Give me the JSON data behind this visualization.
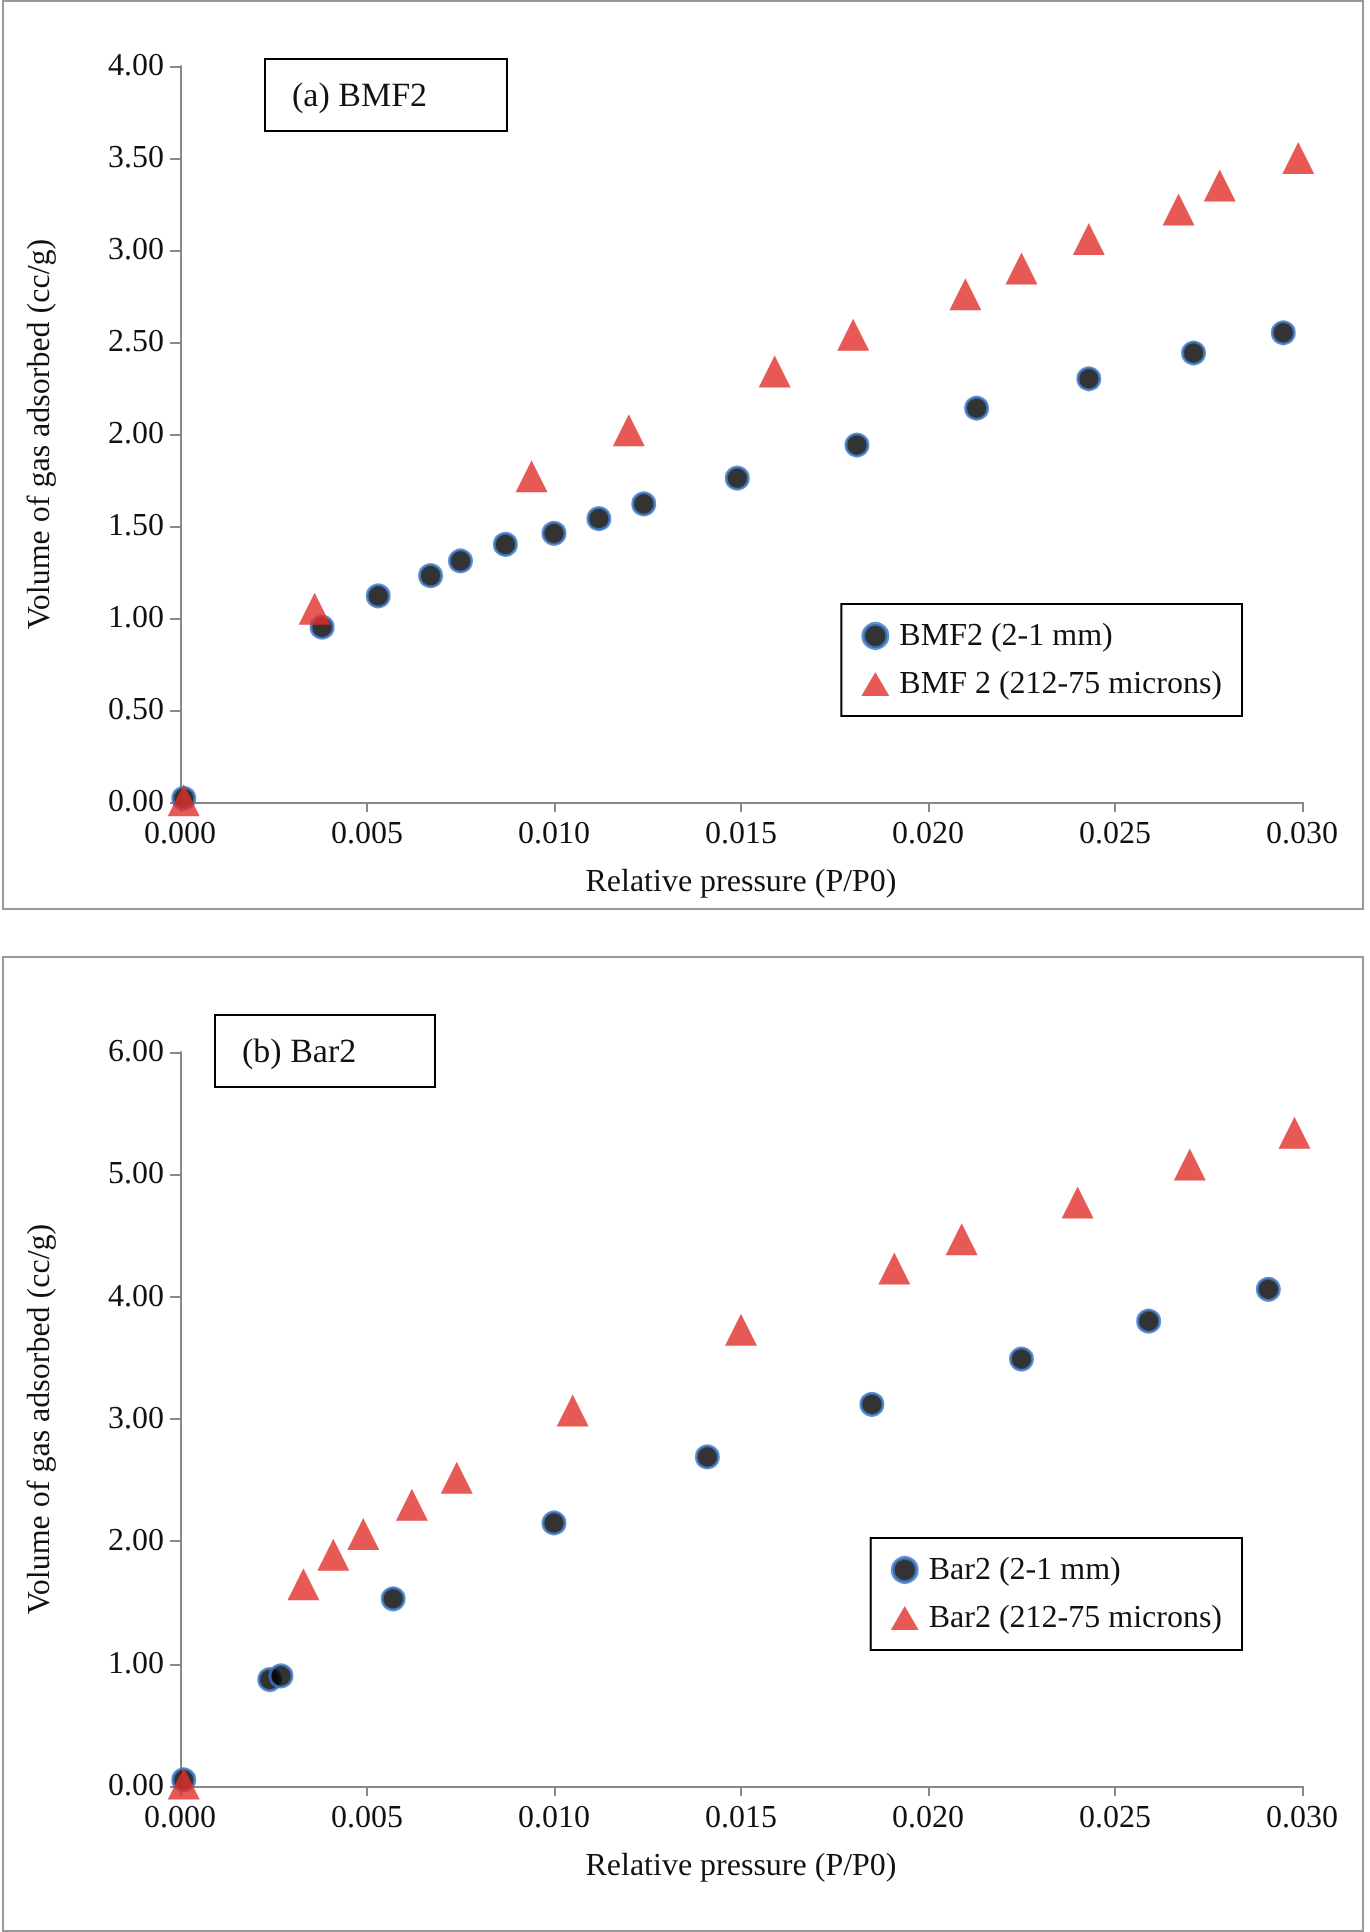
{
  "chart_data": [
    {
      "type": "scatter",
      "title": "(a) BMF2",
      "xlabel": "Relative pressure (P/P0)",
      "ylabel": "Volume of gas adsorbed (cc/g)",
      "xlim": [
        0,
        0.03
      ],
      "xticks": [
        {
          "value": 0,
          "label": "0.000"
        },
        {
          "value": 0.005,
          "label": "0.005"
        },
        {
          "value": 0.01,
          "label": "0.010"
        },
        {
          "value": 0.015,
          "label": "0.015"
        },
        {
          "value": 0.02,
          "label": "0.020"
        },
        {
          "value": 0.025,
          "label": "0.025"
        },
        {
          "value": 0.03,
          "label": "0.030"
        }
      ],
      "ylim": [
        0,
        4
      ],
      "yticks": [
        {
          "value": 0,
          "label": "0.00"
        },
        {
          "value": 0.5,
          "label": "0.50"
        },
        {
          "value": 1,
          "label": "1.00"
        },
        {
          "value": 1.5,
          "label": "1.50"
        },
        {
          "value": 2,
          "label": "2.00"
        },
        {
          "value": 2.5,
          "label": "2.50"
        },
        {
          "value": 3,
          "label": "3.00"
        },
        {
          "value": 3.5,
          "label": "3.50"
        },
        {
          "value": 4,
          "label": "4.00"
        }
      ],
      "grid": false,
      "legend": "bottom right",
      "series": [
        {
          "name": "BMF2 (2-1 mm)",
          "color": "#000000",
          "marker": "circle",
          "x": [
            0.0001,
            0.0038,
            0.0053,
            0.0067,
            0.0075,
            0.0087,
            0.01,
            0.0112,
            0.0124,
            0.0149,
            0.0181,
            0.0213,
            0.0243,
            0.0271,
            0.0295
          ],
          "values": [
            0.02,
            0.95,
            1.12,
            1.23,
            1.31,
            1.4,
            1.46,
            1.54,
            1.62,
            1.76,
            1.94,
            2.14,
            2.3,
            2.44,
            2.55
          ]
        },
        {
          "name": "BMF 2 (212-75 microns)",
          "color": "#e0302a",
          "marker": "triangle",
          "x": [
            0.0001,
            0.0036,
            0.0094,
            0.012,
            0.0159,
            0.018,
            0.021,
            0.0225,
            0.0243,
            0.0267,
            0.0278,
            0.0299
          ],
          "values": [
            0.01,
            1.05,
            1.77,
            2.02,
            2.34,
            2.54,
            2.76,
            2.9,
            3.06,
            3.22,
            3.35,
            3.5
          ]
        }
      ]
    },
    {
      "type": "scatter",
      "title": "(b) Bar2",
      "xlabel": "Relative pressure (P/P0)",
      "ylabel": "Volume of gas adsorbed (cc/g)",
      "xlim": [
        0,
        0.03
      ],
      "xticks": [
        {
          "value": 0,
          "label": "0.000"
        },
        {
          "value": 0.005,
          "label": "0.005"
        },
        {
          "value": 0.01,
          "label": "0.010"
        },
        {
          "value": 0.015,
          "label": "0.015"
        },
        {
          "value": 0.02,
          "label": "0.020"
        },
        {
          "value": 0.025,
          "label": "0.025"
        },
        {
          "value": 0.03,
          "label": "0.030"
        }
      ],
      "ylim": [
        0,
        6
      ],
      "yticks": [
        {
          "value": 0,
          "label": "0.00"
        },
        {
          "value": 1,
          "label": "1.00"
        },
        {
          "value": 2,
          "label": "2.00"
        },
        {
          "value": 3,
          "label": "3.00"
        },
        {
          "value": 4,
          "label": "4.00"
        },
        {
          "value": 5,
          "label": "5.00"
        },
        {
          "value": 6,
          "label": "6.00"
        }
      ],
      "grid": false,
      "legend": "bottom right",
      "series": [
        {
          "name": "Bar2 (2-1 mm)",
          "color": "#000000",
          "marker": "circle",
          "x": [
            0.0001,
            0.0024,
            0.0027,
            0.0057,
            0.01,
            0.0141,
            0.0185,
            0.0225,
            0.0259,
            0.0291
          ],
          "values": [
            0.05,
            0.87,
            0.9,
            1.53,
            2.15,
            2.69,
            3.12,
            3.49,
            3.8,
            4.06
          ]
        },
        {
          "name": "Bar2 (212-75 microns)",
          "color": "#e0302a",
          "marker": "triangle",
          "x": [
            0.0001,
            0.0033,
            0.0041,
            0.0049,
            0.0062,
            0.0074,
            0.0105,
            0.015,
            0.0191,
            0.0209,
            0.024,
            0.027,
            0.0298
          ],
          "values": [
            0.02,
            1.65,
            1.89,
            2.06,
            2.3,
            2.52,
            3.07,
            3.73,
            4.23,
            4.47,
            4.77,
            5.08,
            5.34
          ]
        }
      ]
    }
  ]
}
